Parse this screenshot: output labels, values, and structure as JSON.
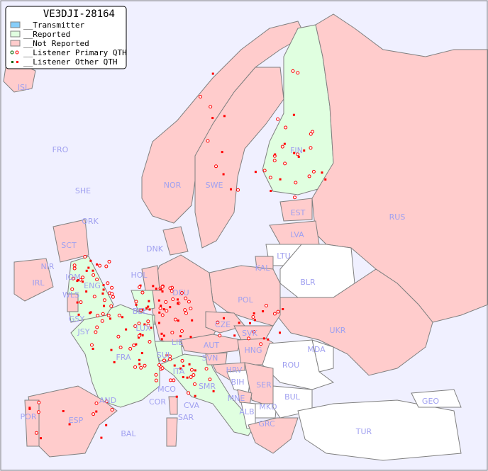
{
  "title": "VE3DJI-28164",
  "legend": [
    {
      "label": "__Transmitter",
      "color": "#87cefa",
      "kind": "box"
    },
    {
      "label": "__Reported",
      "color": "#e0ffe0",
      "kind": "box"
    },
    {
      "label": "__Not Reported",
      "color": "#ffcccc",
      "kind": "box"
    },
    {
      "label": "__Listener Primary QTH",
      "kind": "circle"
    },
    {
      "label": "__Listener Other QTH",
      "kind": "square"
    }
  ],
  "colors": {
    "sea": "#f0f0ff",
    "reported": "#e0ffe0",
    "not_reported": "#ffcccc",
    "no_data": "#ffffff",
    "listener": "#ff0000",
    "listener_alt": "#006400",
    "border": "#808080"
  },
  "countries": {
    "reported": [
      "FIN",
      "ENG",
      "FRA",
      "ITA",
      "BEL",
      "LUX",
      "SUI"
    ],
    "not_reported": [
      "ISL",
      "FRO",
      "SHE",
      "ORK",
      "NOR",
      "SWE",
      "EST",
      "RUS",
      "LVA",
      "KAL",
      "DNK",
      "HOL",
      "DEU",
      "POL",
      "UKR",
      "IRL",
      "NIR",
      "SCT",
      "WLS",
      "IOM",
      "GSY",
      "JSY",
      "CZE",
      "SVK",
      "AUT",
      "HNG",
      "LIE",
      "SVN",
      "HRV",
      "SER",
      "MCO",
      "COR",
      "SMR",
      "CVA",
      "MNE",
      "GRC",
      "AND",
      "POR",
      "ESP",
      "BAL",
      "SAR"
    ],
    "no_data": [
      "LTU",
      "BLR",
      "MDA",
      "ROU",
      "BIH",
      "BUL",
      "ALB",
      "MKD",
      "TUR",
      "GEO"
    ]
  },
  "labels": [
    "ISL",
    "FRO",
    "SHE",
    "ORK",
    "NOR",
    "SWE",
    "FIN",
    "EST",
    "RUS",
    "LVA",
    "LTU",
    "KAL",
    "BLR",
    "DNK",
    "HOL",
    "DEU",
    "POL",
    "UKR",
    "IRL",
    "NIR",
    "SCT",
    "IOM",
    "WLS",
    "ENG",
    "GSY",
    "JSY",
    "BEL",
    "LUX",
    "CZE",
    "SVK",
    "AUT",
    "HNG",
    "MDA",
    "FRA",
    "SUI",
    "LIE",
    "ITA",
    "SVN",
    "HRV",
    "ROU",
    "BIH",
    "SER",
    "BUL",
    "MCO",
    "COR",
    "SMR",
    "CVA",
    "MNE",
    "ALB",
    "MKD",
    "GRC",
    "TUR",
    "GEO",
    "AND",
    "POR",
    "ESP",
    "BAL",
    "SAR"
  ]
}
